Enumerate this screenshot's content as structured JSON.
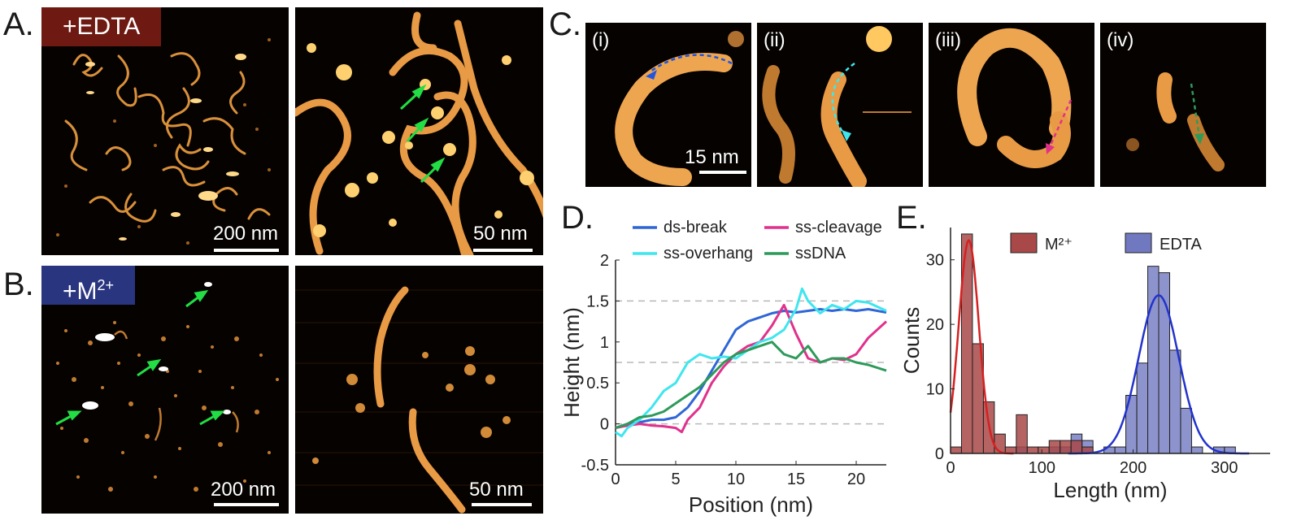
{
  "panels": {
    "a": {
      "letter": "A.",
      "label": "+EDTA",
      "label_color": "#6e1a12",
      "left_scale": "200 nm",
      "right_scale": "50 nm"
    },
    "b": {
      "letter": "B.",
      "label_main": "+M",
      "label_sup": "2+",
      "label_color": "#2a3580",
      "left_scale": "200 nm",
      "right_scale": "50 nm"
    },
    "c": {
      "letter": "C.",
      "subpanels": [
        "(i)",
        "(ii)",
        "(iii)",
        "(iv)"
      ],
      "scale": "15 nm"
    },
    "d": {
      "letter": "D."
    },
    "e": {
      "letter": "E."
    }
  },
  "colors": {
    "afm_bg": "#050200",
    "dna": "#e8a040",
    "dna_bright": "#ffd98a",
    "arrow_green": "#22dd44",
    "ds_break": "#2f66d6",
    "ss_cleavage": "#e0318c",
    "ss_overhang": "#3fe6ee",
    "ssdna": "#2e9a5a",
    "m2": "#a84848",
    "edta": "#7078c0"
  },
  "chart_data": [
    {
      "type": "line",
      "panel": "D",
      "xlabel": "Position (nm)",
      "ylabel": "Height (nm)",
      "xlim": [
        0,
        22.5
      ],
      "ylim": [
        -0.5,
        2
      ],
      "xticks": [
        0,
        5,
        10,
        15,
        20
      ],
      "yticks": [
        -0.5,
        0,
        0.5,
        1,
        1.5,
        2
      ],
      "ytick_labels": [
        "-0.5",
        "0",
        "0.5",
        "1",
        "1.5",
        "2"
      ],
      "reference_lines": [
        0,
        0.75,
        1.5
      ],
      "legend": "top",
      "series": [
        {
          "name": "ds-break",
          "color": "#2f66d6",
          "x": [
            0,
            1,
            2,
            3,
            4,
            5,
            6,
            7,
            8,
            9,
            10,
            11,
            12,
            13,
            14,
            15,
            16,
            17,
            18,
            19,
            20,
            21,
            22.5
          ],
          "y": [
            -0.05,
            0,
            0.02,
            0.05,
            0.05,
            0.08,
            0.2,
            0.4,
            0.65,
            0.9,
            1.15,
            1.25,
            1.3,
            1.35,
            1.38,
            1.36,
            1.38,
            1.4,
            1.38,
            1.4,
            1.38,
            1.4,
            1.36
          ]
        },
        {
          "name": "ss-cleavage",
          "color": "#e0318c",
          "x": [
            0,
            1,
            2,
            3,
            4,
            5,
            5.5,
            6,
            7,
            8,
            9,
            10,
            11,
            12,
            13,
            14,
            15,
            16,
            17,
            18,
            19,
            20,
            21,
            22.5
          ],
          "y": [
            -0.05,
            -0.02,
            0,
            -0.02,
            -0.03,
            -0.05,
            -0.1,
            0.05,
            0.2,
            0.5,
            0.7,
            0.85,
            0.95,
            1.0,
            1.2,
            1.45,
            1.1,
            0.8,
            0.75,
            0.8,
            0.78,
            0.85,
            1.05,
            1.25
          ]
        },
        {
          "name": "ss-overhang",
          "color": "#3fe6ee",
          "x": [
            0,
            0.5,
            1,
            2,
            3,
            4,
            5,
            6,
            7,
            8,
            9,
            10,
            11,
            12,
            13,
            14,
            15,
            15.5,
            16,
            17,
            18,
            19,
            20,
            21,
            22.5
          ],
          "y": [
            -0.1,
            -0.15,
            -0.05,
            0.05,
            0.2,
            0.4,
            0.5,
            0.75,
            0.85,
            0.8,
            0.82,
            0.8,
            0.9,
            1.0,
            1.05,
            1.15,
            1.4,
            1.65,
            1.5,
            1.35,
            1.45,
            1.4,
            1.5,
            1.48,
            1.38
          ]
        },
        {
          "name": "ssDNA",
          "color": "#2e9a5a",
          "x": [
            0,
            1,
            2,
            3,
            4,
            5,
            6,
            7,
            8,
            9,
            10,
            11,
            12,
            13,
            14,
            15,
            16,
            17,
            18,
            19,
            20,
            21,
            22.5
          ],
          "y": [
            -0.05,
            0,
            0.08,
            0.1,
            0.15,
            0.25,
            0.35,
            0.45,
            0.6,
            0.75,
            0.85,
            0.9,
            0.95,
            1.0,
            0.85,
            0.8,
            0.95,
            0.75,
            0.8,
            0.8,
            0.75,
            0.72,
            0.65
          ]
        }
      ]
    },
    {
      "type": "bar",
      "panel": "E",
      "xlabel": "Length (nm)",
      "ylabel": "Counts",
      "xlim": [
        0,
        350
      ],
      "ylim": [
        0,
        35
      ],
      "xticks": [
        0,
        100,
        200,
        300
      ],
      "yticks": [
        0,
        10,
        20,
        30
      ],
      "bin_width": 12,
      "legend": "top",
      "series": [
        {
          "name": "M²⁺",
          "color": "#a84848",
          "bins": [
            0,
            12,
            24,
            36,
            48,
            60,
            72,
            84,
            96,
            108,
            120,
            132,
            144,
            156,
            168,
            180,
            192,
            204,
            216,
            228
          ],
          "counts": [
            1,
            34,
            17,
            8,
            3,
            1,
            6,
            1,
            1,
            2,
            2,
            2,
            1,
            0,
            0,
            0,
            0,
            0,
            0,
            0
          ],
          "fit": {
            "mean": 20,
            "sd": 11,
            "peak": 33
          }
        },
        {
          "name": "EDTA",
          "color": "#7078c0",
          "bins": [
            36,
            48,
            60,
            72,
            84,
            96,
            108,
            120,
            132,
            144,
            156,
            168,
            180,
            192,
            204,
            216,
            228,
            240,
            252,
            264,
            276,
            288,
            300
          ],
          "counts": [
            0,
            0,
            0,
            1,
            0,
            0,
            1,
            1,
            3,
            2,
            0,
            1,
            1,
            9,
            14,
            29,
            28,
            16,
            7,
            1,
            0,
            1,
            1
          ],
          "fit": {
            "mean": 228,
            "sd": 22,
            "peak": 24.5
          }
        }
      ]
    }
  ]
}
